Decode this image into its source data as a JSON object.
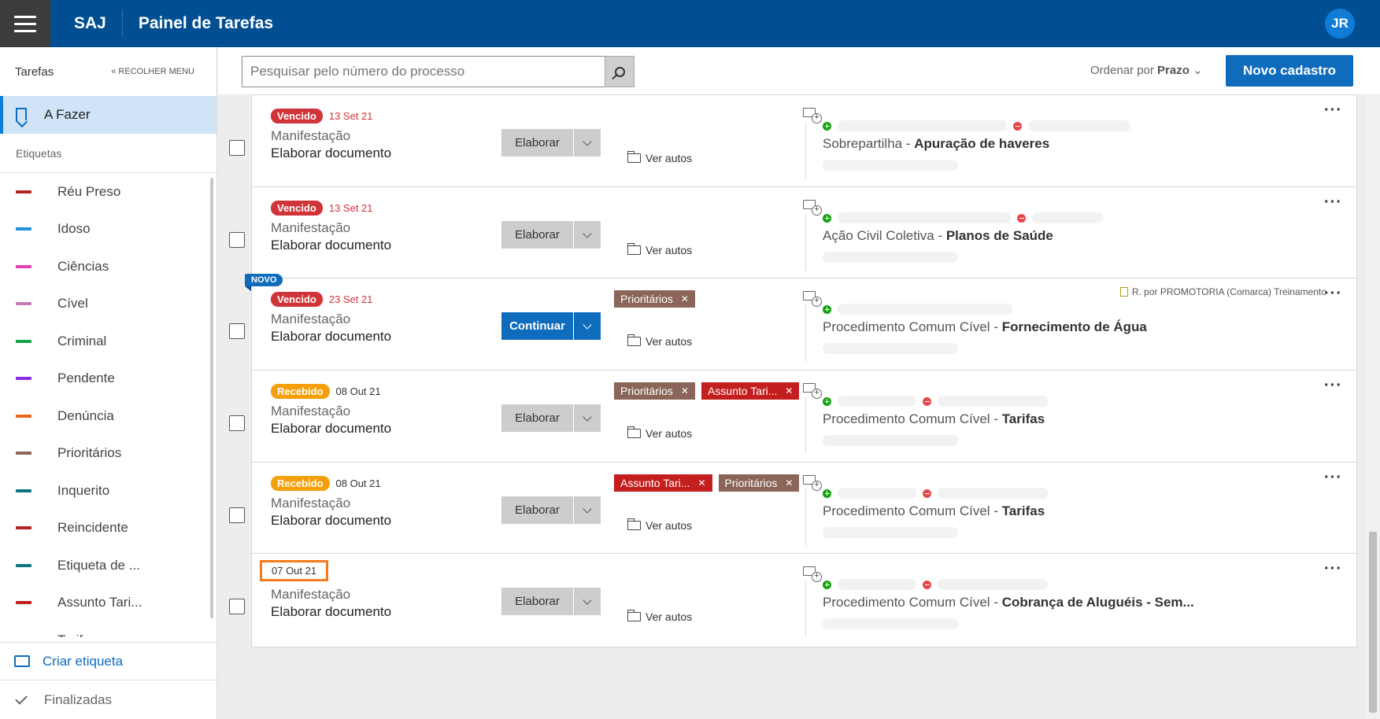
{
  "header": {
    "brand": "SAJ",
    "title": "Painel de Tarefas",
    "avatar": "JR"
  },
  "sidebar": {
    "title": "Tarefas",
    "collapse": "« RECOLHER MENU",
    "active_item": "A Fazer",
    "section": "Etiquetas",
    "labels": [
      {
        "name": "Réu Preso",
        "color": "#b22222"
      },
      {
        "name": "Idoso",
        "color": "#1e8fd8"
      },
      {
        "name": "Ciências",
        "color": "#e83fb5"
      },
      {
        "name": "Cível",
        "color": "#c27bb8"
      },
      {
        "name": "Criminal",
        "color": "#16a34a"
      },
      {
        "name": "Pendente",
        "color": "#8b2be2"
      },
      {
        "name": "Denúncia",
        "color": "#e8671c"
      },
      {
        "name": "Prioritários",
        "color": "#8b6558"
      },
      {
        "name": "Inquerito",
        "color": "#0e7380"
      },
      {
        "name": "Reincidente",
        "color": "#b22222"
      },
      {
        "name": "Etiqueta de ...",
        "color": "#0e7380"
      },
      {
        "name": "Assunto Tari...",
        "color": "#c41e1e"
      },
      {
        "name": "Tarifas",
        "color": "#e8671c"
      }
    ],
    "create_label": "Criar etiqueta",
    "finished": "Finalizadas"
  },
  "toolbar": {
    "search_placeholder": "Pesquisar pelo número do processo",
    "order_prefix": "Ordenar por",
    "order_value": "Prazo",
    "new_button": "Novo cadastro"
  },
  "tasks": [
    {
      "status": "Vencido",
      "date": "13 Set 21",
      "type": "Manifestação",
      "title": "Elaborar documento",
      "action": "Elaborar",
      "autos": "Ver autos",
      "tags": [],
      "case_class": "Sobrepartilha - ",
      "case_subject": "Apuração de haveres",
      "is_new": false
    },
    {
      "status": "Vencido",
      "date": "13 Set 21",
      "type": "Manifestação",
      "title": "Elaborar documento",
      "action": "Elaborar",
      "autos": "Ver autos",
      "tags": [],
      "case_class": "Ação Civil Coletiva - ",
      "case_subject": "Planos de Saúde",
      "is_new": false
    },
    {
      "status": "Vencido",
      "date": "23 Set 21",
      "type": "Manifestação",
      "title": "Elaborar documento",
      "action": "Continuar",
      "autos": "Ver autos",
      "tags": [
        "Prioritários"
      ],
      "case_class": "Procedimento Comum Cível - ",
      "case_subject": "Fornecimento de Água",
      "is_new": true,
      "new_label": "NOVO",
      "responsible": "R.  por PROMOTORIA (Comarca) Treinamento"
    },
    {
      "status": "Recebido",
      "date": "08 Out 21",
      "type": "Manifestação",
      "title": "Elaborar documento",
      "action": "Elaborar",
      "autos": "Ver autos",
      "tags": [
        "Prioritários",
        "Assunto Tari..."
      ],
      "case_class": "Procedimento Comum Cível - ",
      "case_subject": "Tarifas",
      "is_new": false
    },
    {
      "status": "Recebido",
      "date": "08 Out 21",
      "type": "Manifestação",
      "title": "Elaborar documento",
      "action": "Elaborar",
      "autos": "Ver autos",
      "tags": [
        "Assunto Tari...",
        "Prioritários"
      ],
      "case_class": "Procedimento Comum Cível - ",
      "case_subject": "Tarifas",
      "is_new": false
    },
    {
      "status": "",
      "date": "07 Out 21",
      "type": "Manifestação",
      "title": "Elaborar documento",
      "action": "Elaborar",
      "autos": "Ver autos",
      "tags": [],
      "case_class": "Procedimento Comum Cível - ",
      "case_subject": "Cobrança de Aluguéis - Sem...",
      "is_new": false
    }
  ]
}
